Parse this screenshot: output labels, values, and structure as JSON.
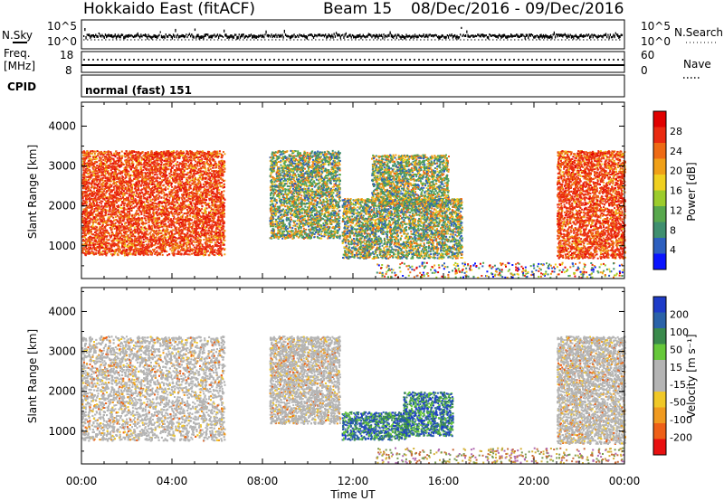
{
  "header": {
    "station": "Hokkaido East (fitACF)",
    "beam": "Beam 15",
    "date_range": "08/Dec/2016 - 09/Dec/2016"
  },
  "noise_panel": {
    "left_label": "N.Sky",
    "right_label": "N.Search",
    "ticks": [
      "10^5",
      "10^0"
    ]
  },
  "freq_panel": {
    "left_label_1": "Freq.",
    "left_label_2": "[MHz]",
    "right_label": "Nave",
    "left_ticks": [
      "18",
      "8"
    ],
    "right_ticks": [
      "60",
      "0"
    ]
  },
  "cpid_panel": {
    "label": "CPID",
    "mode": "normal (fast) 151"
  },
  "colors": {
    "power": [
      "#0a14ff",
      "#2d5fbf",
      "#3f8f6f",
      "#58a84d",
      "#9ccc2c",
      "#f0d020",
      "#f0a018",
      "#ee6a14",
      "#ea2a10",
      "#e00000"
    ],
    "velocity_pos": [
      "#1e3cc8",
      "#2a62a8",
      "#3a8a4c",
      "#66c83a"
    ],
    "velocity_neutral": "#b4b4b4",
    "velocity_neg": [
      "#f0c828",
      "#f09a20",
      "#ee6018",
      "#e81010"
    ],
    "velocity_sparse": [
      "#d4b038",
      "#c86a38",
      "#7a9a50",
      "#b06ab0"
    ]
  },
  "chart_data": [
    {
      "type": "heatmap",
      "panel": "power",
      "ylabel": "Slant Range [km]",
      "ylim": [
        180,
        4600
      ],
      "yticks": [
        1000,
        2000,
        3000,
        4000
      ],
      "xlim": [
        0,
        24
      ],
      "colorbar": {
        "label": "Power [dB]",
        "ticks": [
          "28",
          "24",
          "20",
          "16",
          "12",
          "8",
          "4"
        ],
        "range": [
          0,
          32
        ]
      },
      "regions": [
        {
          "t": [
            0.0,
            6.3
          ],
          "r": [
            780,
            3400
          ],
          "level": "high"
        },
        {
          "t": [
            8.3,
            11.4
          ],
          "r": [
            1200,
            3400
          ],
          "level": "mixed"
        },
        {
          "t": [
            11.5,
            16.8
          ],
          "r": [
            700,
            2200
          ],
          "level": "mixed"
        },
        {
          "t": [
            12.8,
            16.2
          ],
          "r": [
            2000,
            3300
          ],
          "level": "mixed"
        },
        {
          "t": [
            21.0,
            24.0
          ],
          "r": [
            700,
            3400
          ],
          "level": "high"
        },
        {
          "t": [
            13.0,
            24.0
          ],
          "r": [
            220,
            600
          ],
          "level": "low"
        }
      ]
    },
    {
      "type": "heatmap",
      "panel": "velocity",
      "xlabel": "Time UT",
      "ylabel": "Slant Range [km]",
      "ylim": [
        180,
        4600
      ],
      "yticks": [
        1000,
        2000,
        3000,
        4000
      ],
      "xlim": [
        0,
        24
      ],
      "xticks": [
        "00:00",
        "04:00",
        "08:00",
        "12:00",
        "16:00",
        "20:00",
        "00:00"
      ],
      "colorbar": {
        "label": "Velocity [m s⁻¹]",
        "ticks": [
          "200",
          "100",
          "50",
          "15",
          "-15",
          "-50",
          "-100",
          "-200"
        ],
        "range": [
          -250,
          250
        ]
      },
      "regions": [
        {
          "t": [
            0.0,
            6.3
          ],
          "r": [
            780,
            3400
          ],
          "level": "neutral"
        },
        {
          "t": [
            8.3,
            11.4
          ],
          "r": [
            1200,
            3400
          ],
          "level": "neutral"
        },
        {
          "t": [
            14.2,
            16.4
          ],
          "r": [
            900,
            2000
          ],
          "level": "positive"
        },
        {
          "t": [
            11.5,
            14.5
          ],
          "r": [
            800,
            1500
          ],
          "level": "positive"
        },
        {
          "t": [
            21.0,
            24.0
          ],
          "r": [
            700,
            3400
          ],
          "level": "neutral"
        },
        {
          "t": [
            13.0,
            24.0
          ],
          "r": [
            220,
            600
          ],
          "level": "sparse"
        }
      ]
    }
  ]
}
